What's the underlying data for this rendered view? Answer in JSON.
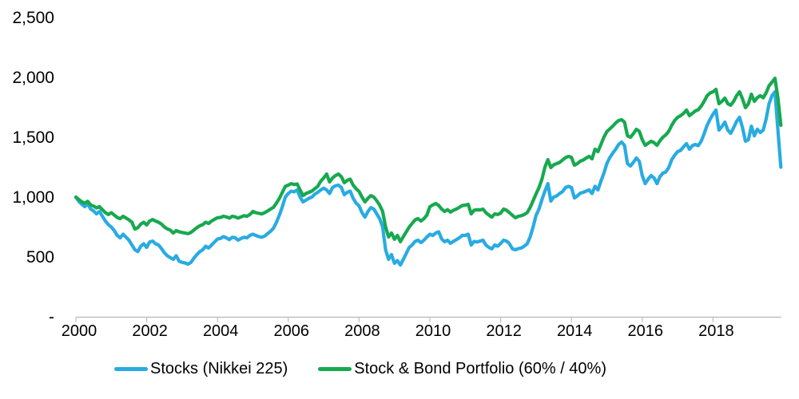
{
  "chart_data": {
    "type": "line",
    "title": "",
    "xlabel": "",
    "ylabel": "",
    "grid": false,
    "legend_position": "bottom",
    "axis_color": "#bfbfbf",
    "text_color": "#000000",
    "y_axis": {
      "ylim": [
        0,
        2500
      ],
      "ticks": [
        {
          "label": "2,500",
          "value": 2500
        },
        {
          "label": "2,000",
          "value": 2000
        },
        {
          "label": "1,500",
          "value": 1500
        },
        {
          "label": "1,000",
          "value": 1000
        },
        {
          "label": "500",
          "value": 500
        },
        {
          "label": "-",
          "value": 0
        }
      ]
    },
    "x_axis": {
      "ticks": [
        {
          "label": "2000",
          "year": 2000
        },
        {
          "label": "2002",
          "year": 2002
        },
        {
          "label": "2004",
          "year": 2004
        },
        {
          "label": "2006",
          "year": 2006
        },
        {
          "label": "2008",
          "year": 2008
        },
        {
          "label": "2010",
          "year": 2010
        },
        {
          "label": "2012",
          "year": 2012
        },
        {
          "label": "2014",
          "year": 2014
        },
        {
          "label": "2016",
          "year": 2016
        },
        {
          "label": "2018",
          "year": 2018
        }
      ]
    },
    "sampling": {
      "start_year": 2000,
      "points_per_year": 12
    },
    "series": [
      {
        "name": "Stocks (Nikkei 225)",
        "color": "#29abe2",
        "values": [
          1000,
          965,
          940,
          920,
          945,
          900,
          885,
          860,
          880,
          840,
          800,
          770,
          750,
          720,
          680,
          660,
          690,
          665,
          640,
          600,
          560,
          545,
          590,
          610,
          580,
          625,
          633,
          610,
          600,
          570,
          535,
          510,
          495,
          480,
          510,
          465,
          455,
          450,
          440,
          455,
          490,
          520,
          545,
          560,
          590,
          575,
          600,
          625,
          650,
          655,
          670,
          660,
          645,
          665,
          660,
          640,
          655,
          665,
          660,
          680,
          690,
          680,
          670,
          665,
          675,
          695,
          715,
          740,
          790,
          850,
          920,
          1000,
          1030,
          1050,
          1045,
          1060,
          1000,
          960,
          975,
          990,
          1000,
          1025,
          1040,
          1060,
          1075,
          1060,
          1030,
          1080,
          1095,
          1100,
          1080,
          1020,
          1040,
          1050,
          990,
          950,
          927,
          870,
          833,
          880,
          913,
          900,
          860,
          820,
          750,
          560,
          480,
          520,
          447,
          470,
          433,
          480,
          530,
          580,
          600,
          630,
          640,
          620,
          640,
          667,
          690,
          680,
          700,
          710,
          650,
          627,
          640,
          615,
          630,
          645,
          660,
          680,
          680,
          690,
          600,
          630,
          625,
          633,
          640,
          600,
          580,
          567,
          600,
          590,
          613,
          640,
          633,
          610,
          567,
          560,
          570,
          575,
          590,
          610,
          667,
          750,
          847,
          900,
          980,
          1050,
          1113,
          967,
          1000,
          1010,
          1030,
          1047,
          1080,
          1090,
          1080,
          993,
          1010,
          1033,
          1040,
          1050,
          1060,
          1030,
          1090,
          1060,
          1133,
          1200,
          1280,
          1330,
          1367,
          1400,
          1440,
          1460,
          1433,
          1280,
          1260,
          1290,
          1327,
          1300,
          1180,
          1113,
          1150,
          1180,
          1160,
          1113,
          1170,
          1200,
          1210,
          1247,
          1313,
          1350,
          1380,
          1390,
          1420,
          1447,
          1400,
          1430,
          1440,
          1430,
          1467,
          1530,
          1600,
          1650,
          1693,
          1727,
          1560,
          1590,
          1627,
          1560,
          1533,
          1580,
          1633,
          1667,
          1580,
          1467,
          1480,
          1593,
          1513,
          1567,
          1540,
          1560,
          1650,
          1780,
          1847,
          1880,
          1560,
          1250
        ]
      },
      {
        "name": "Stock & Bond Portfolio (60% / 40%)",
        "color": "#17a94f",
        "values": [
          1000,
          980,
          960,
          950,
          965,
          935,
          925,
          910,
          920,
          895,
          870,
          855,
          870,
          850,
          830,
          820,
          840,
          825,
          810,
          790,
          733,
          745,
          775,
          790,
          767,
          800,
          813,
          800,
          790,
          775,
          750,
          735,
          725,
          700,
          720,
          710,
          705,
          700,
          695,
          705,
          725,
          745,
          760,
          770,
          790,
          780,
          800,
          815,
          827,
          830,
          840,
          835,
          825,
          840,
          835,
          825,
          835,
          845,
          840,
          855,
          880,
          870,
          865,
          860,
          870,
          885,
          900,
          915,
          950,
          990,
          1040,
          1090,
          1100,
          1113,
          1105,
          1110,
          1060,
          1013,
          1030,
          1040,
          1050,
          1070,
          1090,
          1133,
          1160,
          1193,
          1127,
          1160,
          1180,
          1193,
          1170,
          1120,
          1140,
          1150,
          1100,
          1070,
          1047,
          1000,
          960,
          990,
          1013,
          1000,
          970,
          933,
          880,
          750,
          667,
          700,
          647,
          680,
          627,
          670,
          710,
          750,
          780,
          810,
          820,
          800,
          820,
          850,
          920,
          935,
          947,
          930,
          900,
          880,
          895,
          875,
          890,
          900,
          915,
          930,
          933,
          940,
          860,
          890,
          895,
          893,
          900,
          870,
          850,
          833,
          860,
          855,
          867,
          900,
          890,
          870,
          847,
          827,
          840,
          845,
          855,
          870,
          913,
          970,
          1027,
          1080,
          1150,
          1250,
          1313,
          1247,
          1270,
          1280,
          1290,
          1310,
          1330,
          1340,
          1333,
          1267,
          1280,
          1300,
          1310,
          1327,
          1340,
          1320,
          1400,
          1380,
          1440,
          1500,
          1547,
          1570,
          1593,
          1620,
          1640,
          1647,
          1627,
          1513,
          1500,
          1530,
          1567,
          1550,
          1480,
          1433,
          1450,
          1467,
          1455,
          1433,
          1470,
          1500,
          1520,
          1550,
          1600,
          1640,
          1667,
          1680,
          1700,
          1727,
          1680,
          1700,
          1720,
          1730,
          1760,
          1800,
          1847,
          1870,
          1880,
          1900,
          1780,
          1800,
          1827,
          1780,
          1767,
          1800,
          1847,
          1880,
          1820,
          1747,
          1780,
          1860,
          1800,
          1830,
          1847,
          1830,
          1870,
          1930,
          1960,
          1993,
          1830,
          1600
        ]
      }
    ]
  }
}
